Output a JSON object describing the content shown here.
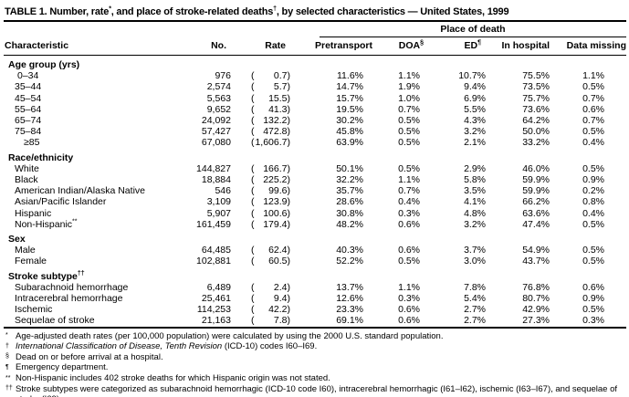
{
  "title": {
    "part1": "TABLE 1. Number, rate",
    "sup1": "*",
    "part2": ", and place of stroke-related deaths",
    "sup2": "†",
    "part3": ",  by selected characteristics — United States, 1999"
  },
  "header": {
    "place_of_death": "Place of death",
    "characteristic": "Characteristic",
    "no": "No.",
    "rate": "Rate",
    "cols": [
      {
        "label": "Pretransport",
        "sup": ""
      },
      {
        "label": "DOA",
        "sup": "§"
      },
      {
        "label": "ED",
        "sup": "¶"
      },
      {
        "label": "In hospital",
        "sup": ""
      },
      {
        "label": "Data missing",
        "sup": ""
      }
    ]
  },
  "table": {
    "sections": [
      {
        "header": "Age group (yrs)",
        "sup": "",
        "rows": [
          {
            "label": "0–34",
            "sup": "",
            "ind": 15,
            "no": "976",
            "rate": "0.7",
            "pct": [
              "11.6%",
              "1.1%",
              "10.7%",
              "75.5%",
              "1.1%"
            ]
          },
          {
            "label": "35–44",
            "sup": "",
            "ind": 12,
            "no": "2,574",
            "rate": "5.7",
            "pct": [
              "14.7%",
              "1.9%",
              "9.4%",
              "73.5%",
              "0.5%"
            ]
          },
          {
            "label": "45–54",
            "sup": "",
            "ind": 12,
            "no": "5,563",
            "rate": "15.5",
            "pct": [
              "15.7%",
              "1.0%",
              "6.9%",
              "75.7%",
              "0.7%"
            ]
          },
          {
            "label": "55–64",
            "sup": "",
            "ind": 12,
            "no": "9,652",
            "rate": "41.3",
            "pct": [
              "19.5%",
              "0.7%",
              "5.5%",
              "73.6%",
              "0.6%"
            ]
          },
          {
            "label": "65–74",
            "sup": "",
            "ind": 12,
            "no": "24,092",
            "rate": "132.2",
            "pct": [
              "30.2%",
              "0.5%",
              "4.3%",
              "64.2%",
              "0.7%"
            ]
          },
          {
            "label": "75–84",
            "sup": "",
            "ind": 12,
            "no": "57,427",
            "rate": "472.8",
            "pct": [
              "45.8%",
              "0.5%",
              "3.2%",
              "50.0%",
              "0.5%"
            ]
          },
          {
            "label": "≥85",
            "sup": "",
            "ind": 22,
            "no": "67,080",
            "rate": "1,606.7",
            "pct": [
              "63.9%",
              "0.5%",
              "2.1%",
              "33.2%",
              "0.4%"
            ]
          }
        ]
      },
      {
        "header": "Race/ethnicity",
        "sup": "",
        "rows": [
          {
            "label": "White",
            "sup": "",
            "ind": 12,
            "no": "144,827",
            "rate": "166.7",
            "pct": [
              "50.1%",
              "0.5%",
              "2.9%",
              "46.0%",
              "0.5%"
            ]
          },
          {
            "label": "Black",
            "sup": "",
            "ind": 12,
            "no": "18,884",
            "rate": "225.2",
            "pct": [
              "32.2%",
              "1.1%",
              "5.8%",
              "59.9%",
              "0.9%"
            ]
          },
          {
            "label": "American Indian/Alaska Native",
            "sup": "",
            "ind": 12,
            "no": "546",
            "rate": "99.6",
            "pct": [
              "35.7%",
              "0.7%",
              "3.5%",
              "59.9%",
              "0.2%"
            ]
          },
          {
            "label": "Asian/Pacific Islander",
            "sup": "",
            "ind": 12,
            "no": "3,109",
            "rate": "123.9",
            "pct": [
              "28.6%",
              "0.4%",
              "4.1%",
              "66.2%",
              "0.8%"
            ]
          },
          {
            "label": "Hispanic",
            "sup": "",
            "ind": 12,
            "no": "5,907",
            "rate": "100.6",
            "pct": [
              "30.8%",
              "0.3%",
              "4.8%",
              "63.6%",
              "0.4%"
            ]
          },
          {
            "label": "Non-Hispanic",
            "sup": "**",
            "ind": 12,
            "no": "161,459",
            "rate": "179.4",
            "pct": [
              "48.2%",
              "0.6%",
              "3.2%",
              "47.4%",
              "0.5%"
            ]
          }
        ]
      },
      {
        "header": "Sex",
        "sup": "",
        "rows": [
          {
            "label": "Male",
            "sup": "",
            "ind": 12,
            "no": "64,485",
            "rate": "62.4",
            "pct": [
              "40.3%",
              "0.6%",
              "3.7%",
              "54.9%",
              "0.5%"
            ]
          },
          {
            "label": "Female",
            "sup": "",
            "ind": 12,
            "no": "102,881",
            "rate": "60.5",
            "pct": [
              "52.2%",
              "0.5%",
              "3.0%",
              "43.7%",
              "0.5%"
            ]
          }
        ]
      },
      {
        "header": "Stroke subtype",
        "sup": "††",
        "rows": [
          {
            "label": "Subarachnoid hemorrhage",
            "sup": "",
            "ind": 12,
            "no": "6,489",
            "rate": "2.4",
            "pct": [
              "13.7%",
              "1.1%",
              "7.8%",
              "76.8%",
              "0.6%"
            ]
          },
          {
            "label": "Intracerebral hemorrhage",
            "sup": "",
            "ind": 12,
            "no": "25,461",
            "rate": "9.4",
            "pct": [
              "12.6%",
              "0.3%",
              "5.4%",
              "80.7%",
              "0.9%"
            ]
          },
          {
            "label": "Ischemic",
            "sup": "",
            "ind": 12,
            "no": "114,253",
            "rate": "42.2",
            "pct": [
              "23.3%",
              "0.6%",
              "2.7%",
              "42.9%",
              "0.5%"
            ]
          },
          {
            "label": "Sequelae of stroke",
            "sup": "",
            "ind": 12,
            "no": "21,163",
            "rate": "7.8",
            "pct": [
              "69.1%",
              "0.6%",
              "2.7%",
              "27.3%",
              "0.3%"
            ]
          }
        ]
      }
    ]
  },
  "footnotes": [
    {
      "marker": "*",
      "italic": "",
      "text": "Age-adjusted death rates (per 100,000 population) were calculated by using the 2000 U.S. standard population."
    },
    {
      "marker": "†",
      "italic": "International Classification of Disease, Tenth Revision",
      "text": " (ICD-10) codes I60–I69."
    },
    {
      "marker": "§",
      "italic": "",
      "text": "Dead on or before arrival at a hospital."
    },
    {
      "marker": "¶",
      "italic": "",
      "text": "Emergency department."
    },
    {
      "marker": "**",
      "italic": "",
      "text": "Non-Hispanic includes 402 stroke deaths for which Hispanic origin was not stated."
    },
    {
      "marker": "††",
      "italic": "",
      "text": "Stroke subtypes were categorized as subarachnoid hemorrhagic (ICD-10 code I60), intracerebral hemorrhagic (I61–I62), ischemic (I63–I67), and sequelae of stroke (I69)."
    }
  ]
}
